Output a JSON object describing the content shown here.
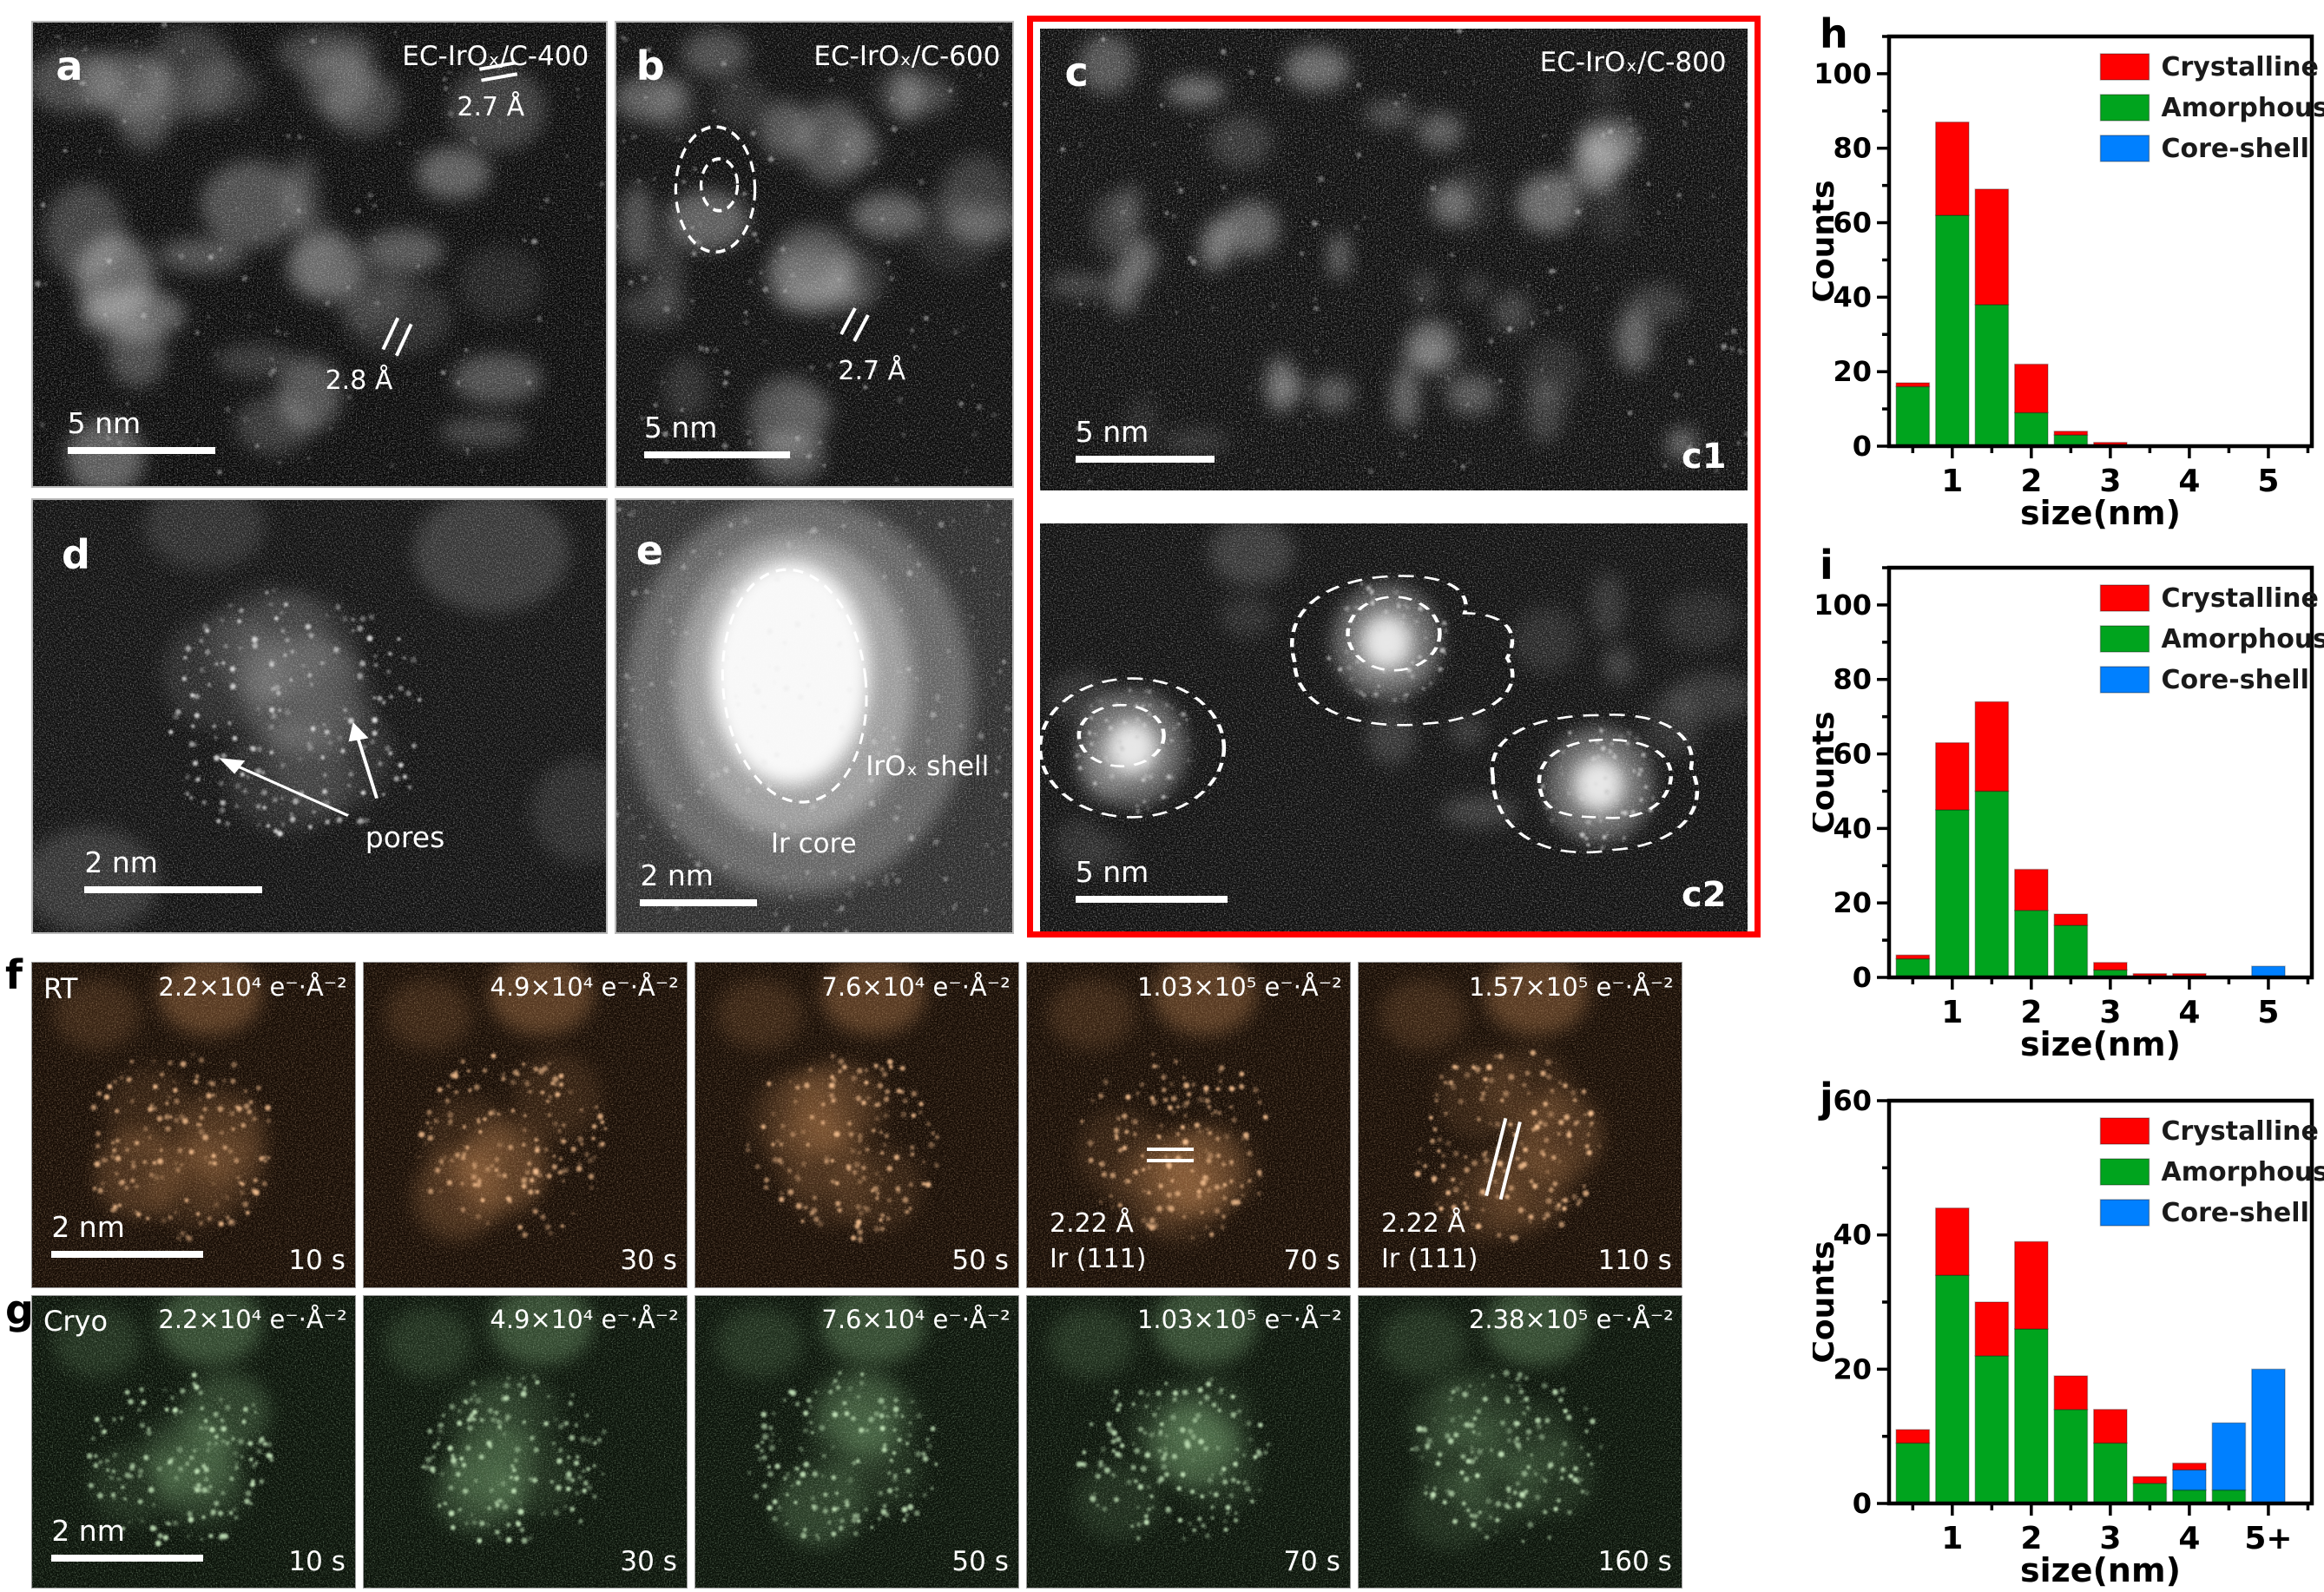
{
  "figure": {
    "panels": {
      "a": {
        "letter": "a",
        "sample": "EC-IrOₓ/C-400",
        "scalebar": "5 nm",
        "fringe_top": "2.7 Å",
        "fringe_mid": "2.8 Å"
      },
      "b": {
        "letter": "b",
        "sample": "EC-IrOₓ/C-600",
        "scalebar": "5 nm",
        "fringe": "2.7 Å"
      },
      "c": {
        "letter": "c",
        "sample": "EC-IrOₓ/C-800",
        "sub1": "c1",
        "sub2": "c2",
        "scalebar1": "5 nm",
        "scalebar2": "5 nm"
      },
      "d": {
        "letter": "d",
        "scalebar": "2 nm",
        "annotation": "pores"
      },
      "e": {
        "letter": "e",
        "scalebar": "2 nm",
        "shell_label": "IrOₓ shell",
        "core_label": "Ir core"
      },
      "f": {
        "letter": "f",
        "mode": "RT",
        "scalebar": "2 nm",
        "frames": [
          {
            "dose": "2.2×10⁴ e⁻·Å⁻²",
            "time": "10 s"
          },
          {
            "dose": "4.9×10⁴ e⁻·Å⁻²",
            "time": "30 s"
          },
          {
            "dose": "7.6×10⁴ e⁻·Å⁻²",
            "time": "50 s"
          },
          {
            "dose": "1.03×10⁵ e⁻·Å⁻²",
            "time": "70 s",
            "dspacing": "2.22 Å",
            "plane": "Ir (111)"
          },
          {
            "dose": "1.57×10⁵ e⁻·Å⁻²",
            "time": "110 s",
            "dspacing": "2.22 Å",
            "plane": "Ir (111)"
          }
        ]
      },
      "g": {
        "letter": "g",
        "mode": "Cryo",
        "scalebar": "2 nm",
        "frames": [
          {
            "dose": "2.2×10⁴ e⁻·Å⁻²",
            "time": "10 s"
          },
          {
            "dose": "4.9×10⁴ e⁻·Å⁻²",
            "time": "30 s"
          },
          {
            "dose": "7.6×10⁴ e⁻·Å⁻²",
            "time": "50 s"
          },
          {
            "dose": "1.03×10⁵ e⁻·Å⁻²",
            "time": "70 s"
          },
          {
            "dose": "2.38×10⁵ e⁻·Å⁻²",
            "time": "160 s"
          }
        ]
      }
    }
  },
  "chart_data": [
    {
      "id": "h",
      "letter": "h",
      "type": "bar",
      "title": "",
      "xlabel": "size(nm)",
      "ylabel": "Counts",
      "xlim": [
        0.2,
        5.55
      ],
      "ybox": 110,
      "yticks": [
        0,
        20,
        40,
        60,
        80,
        100
      ],
      "xticks": [
        1,
        2,
        3,
        4,
        5
      ],
      "xtick_labels": [
        "1",
        "2",
        "3",
        "4",
        "5"
      ],
      "grid": false,
      "legend_position": "top-right",
      "stack_order": [
        "amorphous",
        "coreshell",
        "crystalline"
      ],
      "legend": [
        {
          "key": "crystalline",
          "label": "Crystalline",
          "color": "#ff0000"
        },
        {
          "key": "amorphous",
          "label": "Amorphous",
          "color": "#00a41e"
        },
        {
          "key": "coreshell",
          "label": "Core-shell",
          "color": "#0080ff"
        }
      ],
      "bars": [
        {
          "x": 0.5,
          "amorphous": 16,
          "coreshell": 0,
          "crystalline": 1
        },
        {
          "x": 1,
          "amorphous": 62,
          "coreshell": 0,
          "crystalline": 25
        },
        {
          "x": 1.5,
          "amorphous": 38,
          "coreshell": 0,
          "crystalline": 31
        },
        {
          "x": 2,
          "amorphous": 9,
          "coreshell": 0,
          "crystalline": 13
        },
        {
          "x": 2.5,
          "amorphous": 3,
          "coreshell": 0,
          "crystalline": 1
        },
        {
          "x": 3,
          "amorphous": 0,
          "coreshell": 0,
          "crystalline": 1
        }
      ]
    },
    {
      "id": "i",
      "letter": "i",
      "type": "bar",
      "title": "",
      "xlabel": "size(nm)",
      "ylabel": "Counts",
      "xlim": [
        0.2,
        5.55
      ],
      "ybox": 110,
      "yticks": [
        0,
        20,
        40,
        60,
        80,
        100
      ],
      "xticks": [
        1,
        2,
        3,
        4,
        5
      ],
      "xtick_labels": [
        "1",
        "2",
        "3",
        "4",
        "5"
      ],
      "grid": false,
      "legend_position": "top-right",
      "stack_order": [
        "amorphous",
        "coreshell",
        "crystalline"
      ],
      "legend": [
        {
          "key": "crystalline",
          "label": "Crystalline",
          "color": "#ff0000"
        },
        {
          "key": "amorphous",
          "label": "Amorphous",
          "color": "#00a41e"
        },
        {
          "key": "coreshell",
          "label": "Core-shell",
          "color": "#0080ff"
        }
      ],
      "bars": [
        {
          "x": 0.5,
          "amorphous": 5,
          "coreshell": 0,
          "crystalline": 1
        },
        {
          "x": 1,
          "amorphous": 45,
          "coreshell": 0,
          "crystalline": 18
        },
        {
          "x": 1.5,
          "amorphous": 50,
          "coreshell": 0,
          "crystalline": 24
        },
        {
          "x": 2,
          "amorphous": 18,
          "coreshell": 0,
          "crystalline": 11
        },
        {
          "x": 2.5,
          "amorphous": 14,
          "coreshell": 0,
          "crystalline": 3
        },
        {
          "x": 3,
          "amorphous": 2,
          "coreshell": 0,
          "crystalline": 2
        },
        {
          "x": 3.5,
          "amorphous": 0,
          "coreshell": 0,
          "crystalline": 1
        },
        {
          "x": 4,
          "amorphous": 0,
          "coreshell": 0,
          "crystalline": 1
        },
        {
          "x": 5,
          "amorphous": 0,
          "coreshell": 3,
          "crystalline": 0
        }
      ]
    },
    {
      "id": "j",
      "letter": "j",
      "type": "bar",
      "title": "",
      "xlabel": "size(nm)",
      "ylabel": "Counts",
      "xlim": [
        0.2,
        5.55
      ],
      "ybox": 60,
      "yticks": [
        0,
        20,
        40,
        60
      ],
      "xticks": [
        1,
        2,
        3,
        4,
        5
      ],
      "xtick_labels": [
        "1",
        "2",
        "3",
        "4",
        "5+"
      ],
      "grid": false,
      "legend_position": "top-right",
      "stack_order": [
        "amorphous",
        "coreshell",
        "crystalline"
      ],
      "legend": [
        {
          "key": "crystalline",
          "label": "Crystalline",
          "color": "#ff0000"
        },
        {
          "key": "amorphous",
          "label": "Amorphous",
          "color": "#00a41e"
        },
        {
          "key": "coreshell",
          "label": "Core-shell",
          "color": "#0080ff"
        }
      ],
      "bars": [
        {
          "x": 0.5,
          "amorphous": 9,
          "coreshell": 0,
          "crystalline": 2
        },
        {
          "x": 1,
          "amorphous": 34,
          "coreshell": 0,
          "crystalline": 10
        },
        {
          "x": 1.5,
          "amorphous": 22,
          "coreshell": 0,
          "crystalline": 8
        },
        {
          "x": 2,
          "amorphous": 26,
          "coreshell": 0,
          "crystalline": 13
        },
        {
          "x": 2.5,
          "amorphous": 14,
          "coreshell": 0,
          "crystalline": 5
        },
        {
          "x": 3,
          "amorphous": 9,
          "coreshell": 0,
          "crystalline": 5
        },
        {
          "x": 3.5,
          "amorphous": 3,
          "coreshell": 0,
          "crystalline": 1
        },
        {
          "x": 4,
          "amorphous": 2,
          "coreshell": 3,
          "crystalline": 1
        },
        {
          "x": 4.5,
          "amorphous": 2,
          "coreshell": 10,
          "crystalline": 0
        },
        {
          "x": 5,
          "amorphous": 0,
          "coreshell": 20,
          "crystalline": 0
        }
      ]
    }
  ]
}
